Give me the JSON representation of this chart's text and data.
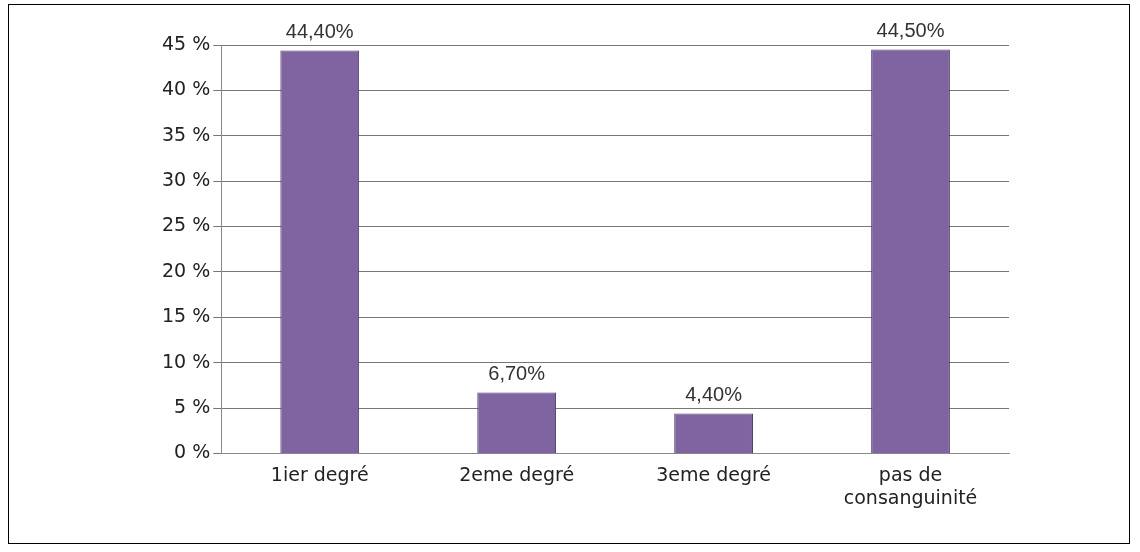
{
  "chart_data": {
    "type": "bar",
    "categories": [
      "1ier degré",
      "2eme degré",
      "3eme degré",
      "pas de consanguinité"
    ],
    "values": [
      44.4,
      6.7,
      4.4,
      44.5
    ],
    "value_labels": [
      "44,40%",
      "6,70%",
      "4,40%",
      "44,50%"
    ],
    "color": "#8064a2",
    "ylim": [
      0,
      45
    ],
    "yticks": [
      {
        "value": 0,
        "label": "0 %"
      },
      {
        "value": 5,
        "label": "5 %"
      },
      {
        "value": 10,
        "label": "10 %"
      },
      {
        "value": 15,
        "label": "15 %"
      },
      {
        "value": 20,
        "label": "20 %"
      },
      {
        "value": 25,
        "label": "25 %"
      },
      {
        "value": 30,
        "label": "30 %"
      },
      {
        "value": 35,
        "label": "35 %"
      },
      {
        "value": 40,
        "label": "40 %"
      },
      {
        "value": 45,
        "label": "45 %"
      }
    ],
    "grid": "y"
  }
}
